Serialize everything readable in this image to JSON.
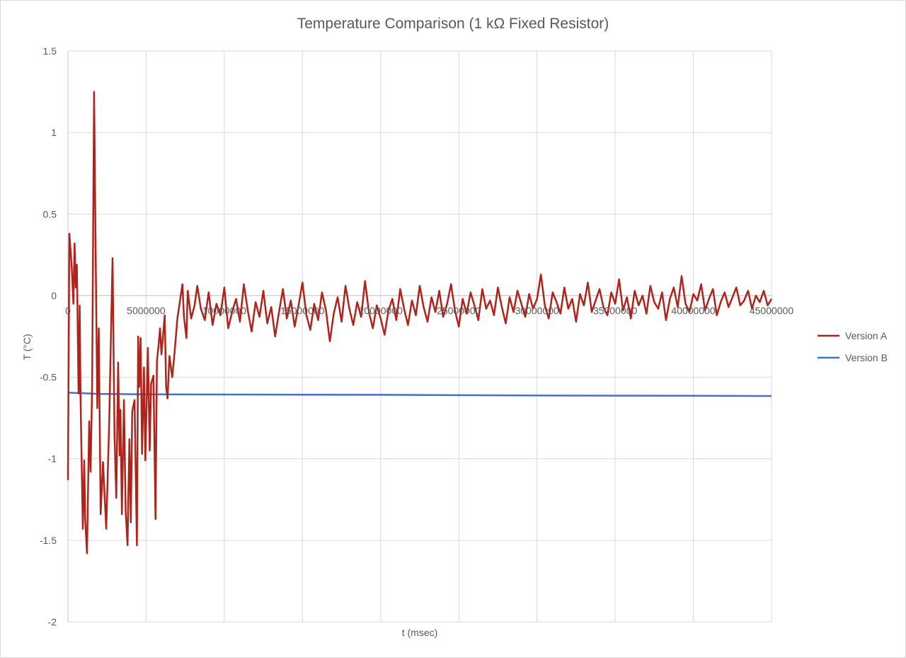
{
  "chart_data": {
    "type": "line",
    "title": "Temperature Comparison (1 kΩ Fixed Resistor)",
    "xlabel": "t (msec)",
    "ylabel": "T (°C)",
    "xlim": [
      0,
      45000000
    ],
    "ylim": [
      -2,
      1.5
    ],
    "x_ticks": [
      0,
      5000000,
      10000000,
      15000000,
      20000000,
      25000000,
      30000000,
      35000000,
      40000000,
      45000000
    ],
    "y_ticks": [
      1.5,
      1,
      0.5,
      0,
      -0.5,
      -1,
      -1.5,
      -2
    ],
    "grid": true,
    "legend_position": "right",
    "series": [
      {
        "name": "Version A",
        "color": "#B0231B",
        "points": [
          [
            0,
            -1.13
          ],
          [
            90000,
            0.38
          ],
          [
            240000,
            0.18
          ],
          [
            350000,
            -0.05
          ],
          [
            420000,
            0.32
          ],
          [
            500000,
            0.05
          ],
          [
            570000,
            0.19
          ],
          [
            680000,
            -0.6
          ],
          [
            750000,
            -0.06
          ],
          [
            800000,
            -0.6
          ],
          [
            950000,
            -1.43
          ],
          [
            1040000,
            -1.01
          ],
          [
            1100000,
            -1.37
          ],
          [
            1220000,
            -1.58
          ],
          [
            1360000,
            -0.77
          ],
          [
            1450000,
            -1.08
          ],
          [
            1550000,
            -0.53
          ],
          [
            1670000,
            1.25
          ],
          [
            1780000,
            0.2
          ],
          [
            1880000,
            -0.69
          ],
          [
            1970000,
            -0.2
          ],
          [
            2090000,
            -1.34
          ],
          [
            2240000,
            -1.02
          ],
          [
            2450000,
            -1.43
          ],
          [
            2640000,
            -0.77
          ],
          [
            2850000,
            0.23
          ],
          [
            2980000,
            -0.86
          ],
          [
            3090000,
            -1.24
          ],
          [
            3210000,
            -0.41
          ],
          [
            3300000,
            -0.98
          ],
          [
            3360000,
            -0.7
          ],
          [
            3450000,
            -1.34
          ],
          [
            3580000,
            -0.64
          ],
          [
            3690000,
            -1.32
          ],
          [
            3810000,
            -1.53
          ],
          [
            3930000,
            -0.88
          ],
          [
            4020000,
            -1.39
          ],
          [
            4110000,
            -0.71
          ],
          [
            4260000,
            -0.64
          ],
          [
            4410000,
            -1.53
          ],
          [
            4490000,
            -0.25
          ],
          [
            4560000,
            -0.56
          ],
          [
            4650000,
            -0.26
          ],
          [
            4740000,
            -0.97
          ],
          [
            4860000,
            -0.44
          ],
          [
            4950000,
            -1.01
          ],
          [
            5110000,
            -0.32
          ],
          [
            5230000,
            -0.95
          ],
          [
            5320000,
            -0.54
          ],
          [
            5470000,
            -0.49
          ],
          [
            5600000,
            -1.37
          ],
          [
            5690000,
            -0.4
          ],
          [
            5800000,
            -0.3
          ],
          [
            5890000,
            -0.2
          ],
          [
            5980000,
            -0.36
          ],
          [
            6190000,
            -0.12
          ],
          [
            6280000,
            -0.56
          ],
          [
            6370000,
            -0.63
          ],
          [
            6490000,
            -0.37
          ],
          [
            6670000,
            -0.5
          ],
          [
            6820000,
            -0.35
          ],
          [
            7000000,
            -0.14
          ],
          [
            7200000,
            -0.01
          ],
          [
            7320000,
            0.07
          ],
          [
            7420000,
            -0.13
          ],
          [
            7580000,
            -0.26
          ],
          [
            7660000,
            0.03
          ],
          [
            7880000,
            -0.14
          ],
          [
            8100000,
            -0.06
          ],
          [
            8270000,
            0.06
          ]
        ],
        "tail_x_range": [
          8500000,
          45000000
        ],
        "tail_values": [
          -0.08,
          -0.15,
          0.02,
          -0.18,
          -0.05,
          -0.12,
          0.05,
          -0.2,
          -0.1,
          -0.02,
          -0.16,
          0.07,
          -0.09,
          -0.22,
          -0.04,
          -0.13,
          0.03,
          -0.17,
          -0.07,
          -0.25,
          -0.1,
          0.04,
          -0.14,
          -0.03,
          -0.19,
          -0.06,
          0.08,
          -0.12,
          -0.21,
          -0.05,
          -0.15,
          0.02,
          -0.09,
          -0.28,
          -0.11,
          -0.01,
          -0.16,
          0.06,
          -0.08,
          -0.18,
          -0.04,
          -0.13,
          0.09,
          -0.1,
          -0.2,
          -0.06,
          -0.14,
          -0.24,
          -0.09,
          -0.02,
          -0.15,
          0.04,
          -0.08,
          -0.18,
          -0.03,
          -0.12,
          0.06,
          -0.07,
          -0.16,
          -0.01,
          -0.1,
          0.03,
          -0.13,
          -0.05,
          0.07,
          -0.09,
          -0.19,
          -0.02,
          -0.11,
          0.02,
          -0.06,
          -0.15,
          0.04,
          -0.08,
          -0.03,
          -0.12,
          0.05,
          -0.07,
          -0.17,
          -0.01,
          -0.1,
          0.03,
          -0.05,
          -0.13,
          0.01,
          -0.08,
          -0.02,
          0.13,
          -0.06,
          -0.14,
          0.02,
          -0.04,
          -0.11,
          0.05,
          -0.08,
          -0.02,
          -0.16,
          0.01,
          -0.06,
          0.08,
          -0.1,
          -0.03,
          0.04,
          -0.07,
          -0.12,
          0.02,
          -0.05,
          0.1,
          -0.09,
          -0.01,
          -0.14,
          0.03,
          -0.06,
          0.0,
          -0.11,
          0.06,
          -0.04,
          -0.08,
          0.02,
          -0.15,
          -0.02,
          0.05,
          -0.07,
          0.12,
          -0.05,
          -0.1,
          0.01,
          -0.03,
          0.07,
          -0.09,
          -0.02,
          0.04,
          -0.12,
          -0.04,
          0.02,
          -0.07,
          -0.01,
          0.05,
          -0.06,
          -0.03,
          0.03,
          -0.08,
          0.0,
          -0.04,
          0.03,
          -0.06,
          -0.02
        ]
      },
      {
        "name": "Version B",
        "color": "#4472C4",
        "points": [
          [
            0,
            -0.595
          ],
          [
            2000000,
            -0.602
          ],
          [
            5000000,
            -0.605
          ],
          [
            10000000,
            -0.606
          ],
          [
            15000000,
            -0.607
          ],
          [
            20000000,
            -0.608
          ],
          [
            25000000,
            -0.61
          ],
          [
            30000000,
            -0.612
          ],
          [
            35000000,
            -0.613
          ],
          [
            40000000,
            -0.614
          ],
          [
            45000000,
            -0.615
          ]
        ]
      }
    ]
  }
}
